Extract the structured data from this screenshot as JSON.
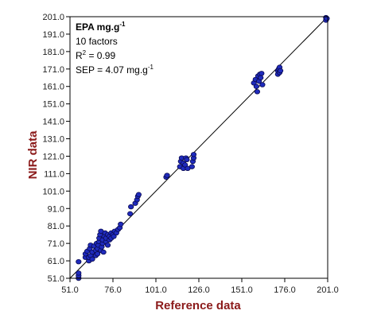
{
  "chart_data": {
    "type": "scatter",
    "title": "",
    "xlabel": "Reference data",
    "ylabel": "NIR data",
    "xlim": [
      51.0,
      201.0
    ],
    "ylim": [
      51.0,
      201.0
    ],
    "xticks": [
      "51.0",
      "76.0",
      "101.0",
      "126.0",
      "151.0",
      "176.0",
      "201.0"
    ],
    "xtick_values": [
      51,
      76,
      101,
      126,
      151,
      176,
      201
    ],
    "yticks": [
      "51.0",
      "61.0",
      "71.0",
      "81.0",
      "91.0",
      "101.0",
      "111.0",
      "121.0",
      "131.0",
      "141.0",
      "151.0",
      "161.0",
      "171.0",
      "181.0",
      "191.0",
      "201.0"
    ],
    "ytick_values": [
      51,
      61,
      71,
      81,
      91,
      101,
      111,
      121,
      131,
      141,
      151,
      161,
      171,
      181,
      191,
      201
    ],
    "annotation": {
      "title_main": "EPA mg.g",
      "title_sup": "-1",
      "factors": "10 factors",
      "r2_prefix": "R",
      "r2_sup": "2",
      "r2_suffix": " = 0.99",
      "sep_prefix": "SEP = 4.07 mg.g",
      "sep_sup": "-1"
    },
    "reference_line": {
      "from": [
        51,
        51
      ],
      "to": [
        201,
        201
      ]
    },
    "grid": false,
    "marker_color": "#1f2bbd",
    "marker_edge": "#0a0a50",
    "line_color": "#000000",
    "points": [
      [
        56,
        51
      ],
      [
        56,
        52.5
      ],
      [
        56,
        54
      ],
      [
        56,
        60.5
      ],
      [
        60,
        63
      ],
      [
        60,
        65
      ],
      [
        61,
        66.5
      ],
      [
        62,
        61
      ],
      [
        62,
        63
      ],
      [
        62.5,
        68
      ],
      [
        63,
        70
      ],
      [
        63,
        64
      ],
      [
        64,
        66
      ],
      [
        64,
        62
      ],
      [
        65,
        69.5
      ],
      [
        66,
        64
      ],
      [
        66,
        67
      ],
      [
        66.5,
        71
      ],
      [
        67,
        65
      ],
      [
        67,
        68
      ],
      [
        67.5,
        70
      ],
      [
        68,
        72
      ],
      [
        68,
        74
      ],
      [
        68.5,
        76
      ],
      [
        69,
        78
      ],
      [
        69,
        67
      ],
      [
        69.5,
        69
      ],
      [
        70,
        71
      ],
      [
        70,
        73
      ],
      [
        70.5,
        66
      ],
      [
        71,
        75
      ],
      [
        71.5,
        77
      ],
      [
        72,
        72
      ],
      [
        72,
        74
      ],
      [
        73,
        70
      ],
      [
        73,
        76
      ],
      [
        74,
        73
      ],
      [
        74,
        75
      ],
      [
        75,
        74
      ],
      [
        75,
        77
      ],
      [
        76,
        76
      ],
      [
        76.5,
        75
      ],
      [
        77,
        78
      ],
      [
        78,
        77
      ],
      [
        79,
        79
      ],
      [
        80,
        80
      ],
      [
        80.5,
        82
      ],
      [
        86,
        88
      ],
      [
        86.5,
        92
      ],
      [
        89,
        94
      ],
      [
        90,
        96
      ],
      [
        90.5,
        98
      ],
      [
        91,
        99
      ],
      [
        107,
        109
      ],
      [
        107.5,
        110
      ],
      [
        115,
        115
      ],
      [
        115.5,
        118
      ],
      [
        116,
        120
      ],
      [
        117,
        114
      ],
      [
        117,
        117
      ],
      [
        118,
        116
      ],
      [
        118.5,
        120
      ],
      [
        119,
        119
      ],
      [
        119.5,
        114
      ],
      [
        122,
        115
      ],
      [
        122.5,
        118
      ],
      [
        123,
        120
      ],
      [
        123,
        122
      ],
      [
        158,
        163
      ],
      [
        159,
        165
      ],
      [
        159.5,
        161
      ],
      [
        160,
        158
      ],
      [
        160.5,
        167
      ],
      [
        161,
        164
      ],
      [
        161.5,
        168
      ],
      [
        162,
        166
      ],
      [
        162.5,
        168.5
      ],
      [
        163,
        162
      ],
      [
        172,
        168
      ],
      [
        172,
        170
      ],
      [
        172.5,
        171
      ],
      [
        173,
        169
      ],
      [
        173,
        172
      ],
      [
        173.5,
        170
      ],
      [
        200,
        199
      ],
      [
        200,
        200.5
      ],
      [
        200.5,
        200
      ]
    ]
  }
}
